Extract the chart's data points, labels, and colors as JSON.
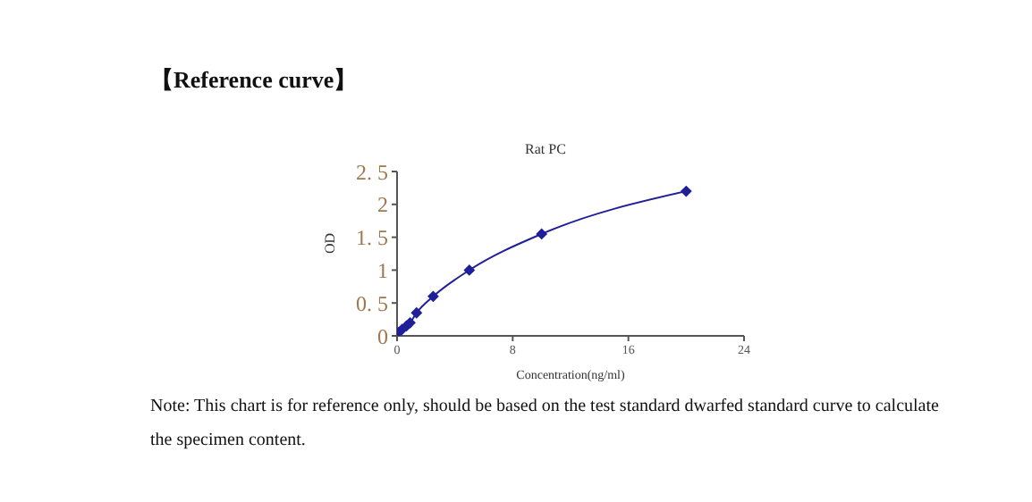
{
  "chart_data": {
    "type": "line",
    "title": "【Reference curve】",
    "subtitle": "Rat PC",
    "xlabel": "Concentration(ng/ml)",
    "ylabel": "OD",
    "x": [
      0.1,
      0.35,
      0.65,
      0.9,
      1.35,
      2.5,
      5,
      10,
      20
    ],
    "series": [
      {
        "color": "#1f1f99",
        "values": [
          0.05,
          0.1,
          0.15,
          0.2,
          0.35,
          0.6,
          1.0,
          1.55,
          2.2
        ]
      }
    ],
    "xlim": [
      0,
      24
    ],
    "xticks": [
      0,
      8,
      16,
      24
    ],
    "ylim": [
      0,
      2.5
    ],
    "yticks": [
      0,
      {
        "value": 0.5,
        "label": "0. 5"
      },
      1,
      {
        "value": 1.5,
        "label": "1. 5"
      },
      2,
      {
        "value": 2.5,
        "label": "2. 5"
      }
    ],
    "grid": false,
    "legend": false,
    "marker": "diamond",
    "line_style": "solid",
    "annotations": [
      "Note: This chart is for reference only, should be based on the test standard dwarfed standard curve to calculate the specimen content."
    ]
  }
}
